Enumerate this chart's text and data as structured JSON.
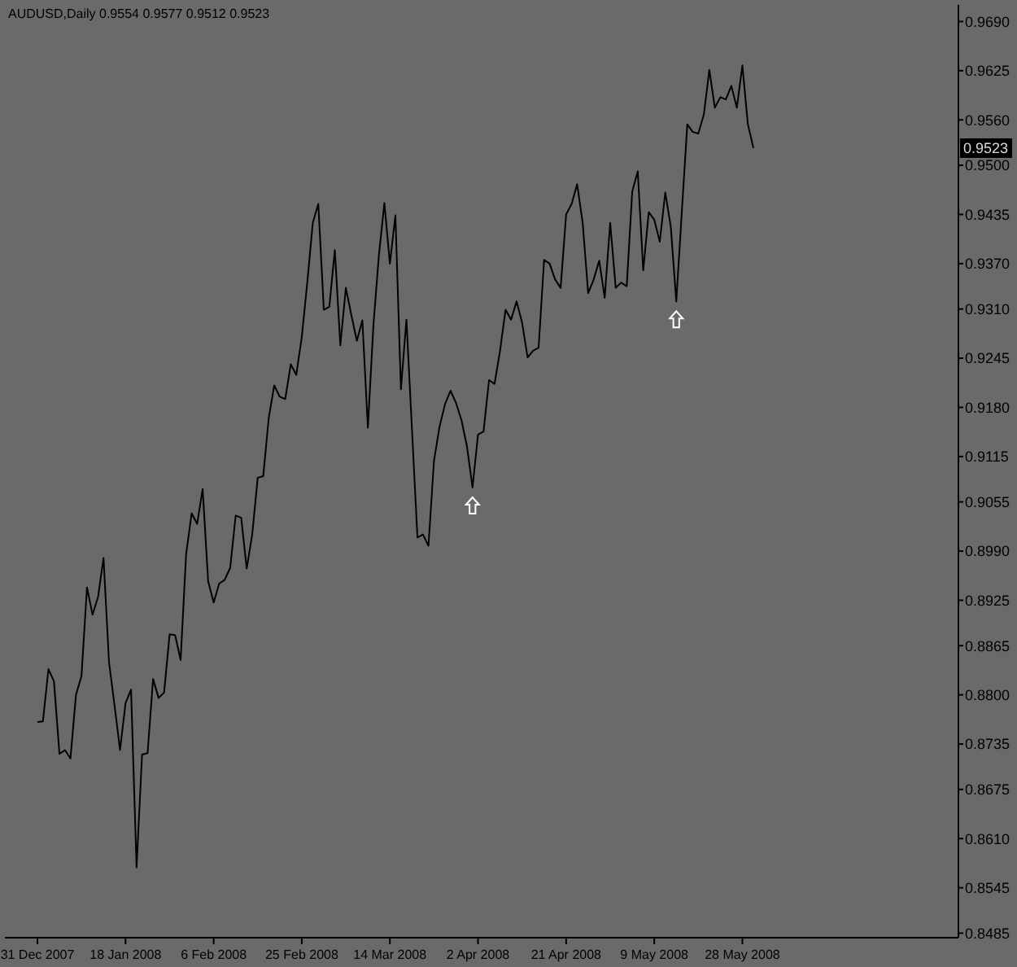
{
  "chart_data": {
    "type": "line",
    "title": "AUDUSD,Daily 0.9554 0.9577 0.9512 0.9523",
    "categories": [
      "31 Dec 2007",
      null,
      null,
      null,
      null,
      null,
      null,
      null,
      null,
      null,
      null,
      null,
      null,
      null,
      null,
      null,
      "18 Jan 2008",
      null,
      null,
      null,
      null,
      null,
      null,
      null,
      null,
      null,
      null,
      null,
      null,
      null,
      null,
      null,
      "6 Feb 2008",
      null,
      null,
      null,
      null,
      null,
      null,
      null,
      null,
      null,
      null,
      null,
      null,
      null,
      null,
      null,
      "25 Feb 2008",
      null,
      null,
      null,
      null,
      null,
      null,
      null,
      null,
      null,
      null,
      null,
      null,
      null,
      null,
      null,
      "14 Mar 2008",
      null,
      null,
      null,
      null,
      null,
      null,
      null,
      null,
      null,
      null,
      null,
      null,
      null,
      null,
      null,
      "2 Apr 2008",
      null,
      null,
      null,
      null,
      null,
      null,
      null,
      null,
      null,
      null,
      null,
      null,
      null,
      null,
      null,
      "21 Apr 2008",
      null,
      null,
      null,
      null,
      null,
      null,
      null,
      null,
      null,
      null,
      null,
      null,
      null,
      null,
      null,
      "9 May 2008",
      null,
      null,
      null,
      null,
      null,
      null,
      null,
      null,
      null,
      null,
      null,
      null,
      null,
      null,
      null,
      "28 May 2008",
      null,
      null
    ],
    "series": [
      {
        "color": "#000000",
        "values": [
          0.8764,
          0.8765,
          0.8834,
          0.8818,
          0.8722,
          0.8727,
          0.8716,
          0.88,
          0.8825,
          0.8942,
          0.8906,
          0.8929,
          0.8981,
          0.8843,
          0.8786,
          0.8727,
          0.8789,
          0.8807,
          0.8572,
          0.8721,
          0.8723,
          0.8821,
          0.8796,
          0.8803,
          0.888,
          0.8879,
          0.8846,
          0.8986,
          0.904,
          0.9026,
          0.9072,
          0.895,
          0.8922,
          0.8947,
          0.8952,
          0.8968,
          0.9037,
          0.9034,
          0.8967,
          0.9012,
          0.9087,
          0.9089,
          0.9166,
          0.9209,
          0.9194,
          0.9191,
          0.9237,
          0.9223,
          0.9273,
          0.9345,
          0.9424,
          0.9449,
          0.9309,
          0.9313,
          0.9388,
          0.9262,
          0.9338,
          0.9302,
          0.9268,
          0.9295,
          0.9153,
          0.9288,
          0.9381,
          0.945,
          0.937,
          0.9434,
          0.9204,
          0.9296,
          0.9152,
          0.9008,
          0.9012,
          0.8997,
          0.9109,
          0.9154,
          0.9184,
          0.9202,
          0.9186,
          0.9163,
          0.9128,
          0.9074,
          0.9144,
          0.9148,
          0.9216,
          0.9211,
          0.9255,
          0.9309,
          0.9296,
          0.932,
          0.9292,
          0.9246,
          0.9255,
          0.9259,
          0.9375,
          0.937,
          0.9349,
          0.9338,
          0.9435,
          0.9449,
          0.9475,
          0.9424,
          0.9331,
          0.9349,
          0.9374,
          0.9325,
          0.9424,
          0.9338,
          0.9345,
          0.934,
          0.9465,
          0.9492,
          0.9361,
          0.9438,
          0.9428,
          0.9399,
          0.9464,
          0.9419,
          0.932,
          0.9438,
          0.9554,
          0.9544,
          0.9542,
          0.9567,
          0.9626,
          0.9576,
          0.959,
          0.9587,
          0.9605,
          0.9576,
          0.9632,
          0.9554,
          0.9523
        ]
      }
    ],
    "ylim": [
      0.8479,
      0.9712
    ],
    "yticks": [
      {
        "value": 0.969,
        "label": "0.9690"
      },
      0.9625,
      {
        "value": 0.956,
        "label": "0.9560"
      },
      {
        "value": 0.95,
        "label": "0.9500"
      },
      0.9435,
      {
        "value": 0.937,
        "label": "0.9370"
      },
      {
        "value": 0.931,
        "label": "0.9310"
      },
      0.9245,
      {
        "value": 0.918,
        "label": "0.9180"
      },
      0.9115,
      0.9055,
      {
        "value": 0.899,
        "label": "0.8990"
      },
      0.8925,
      0.8865,
      {
        "value": 0.88,
        "label": "0.8800"
      },
      0.8735,
      0.8675,
      {
        "value": 0.861,
        "label": "0.8610"
      },
      0.8545,
      0.8485
    ],
    "annotations": [
      "0.9523"
    ]
  }
}
